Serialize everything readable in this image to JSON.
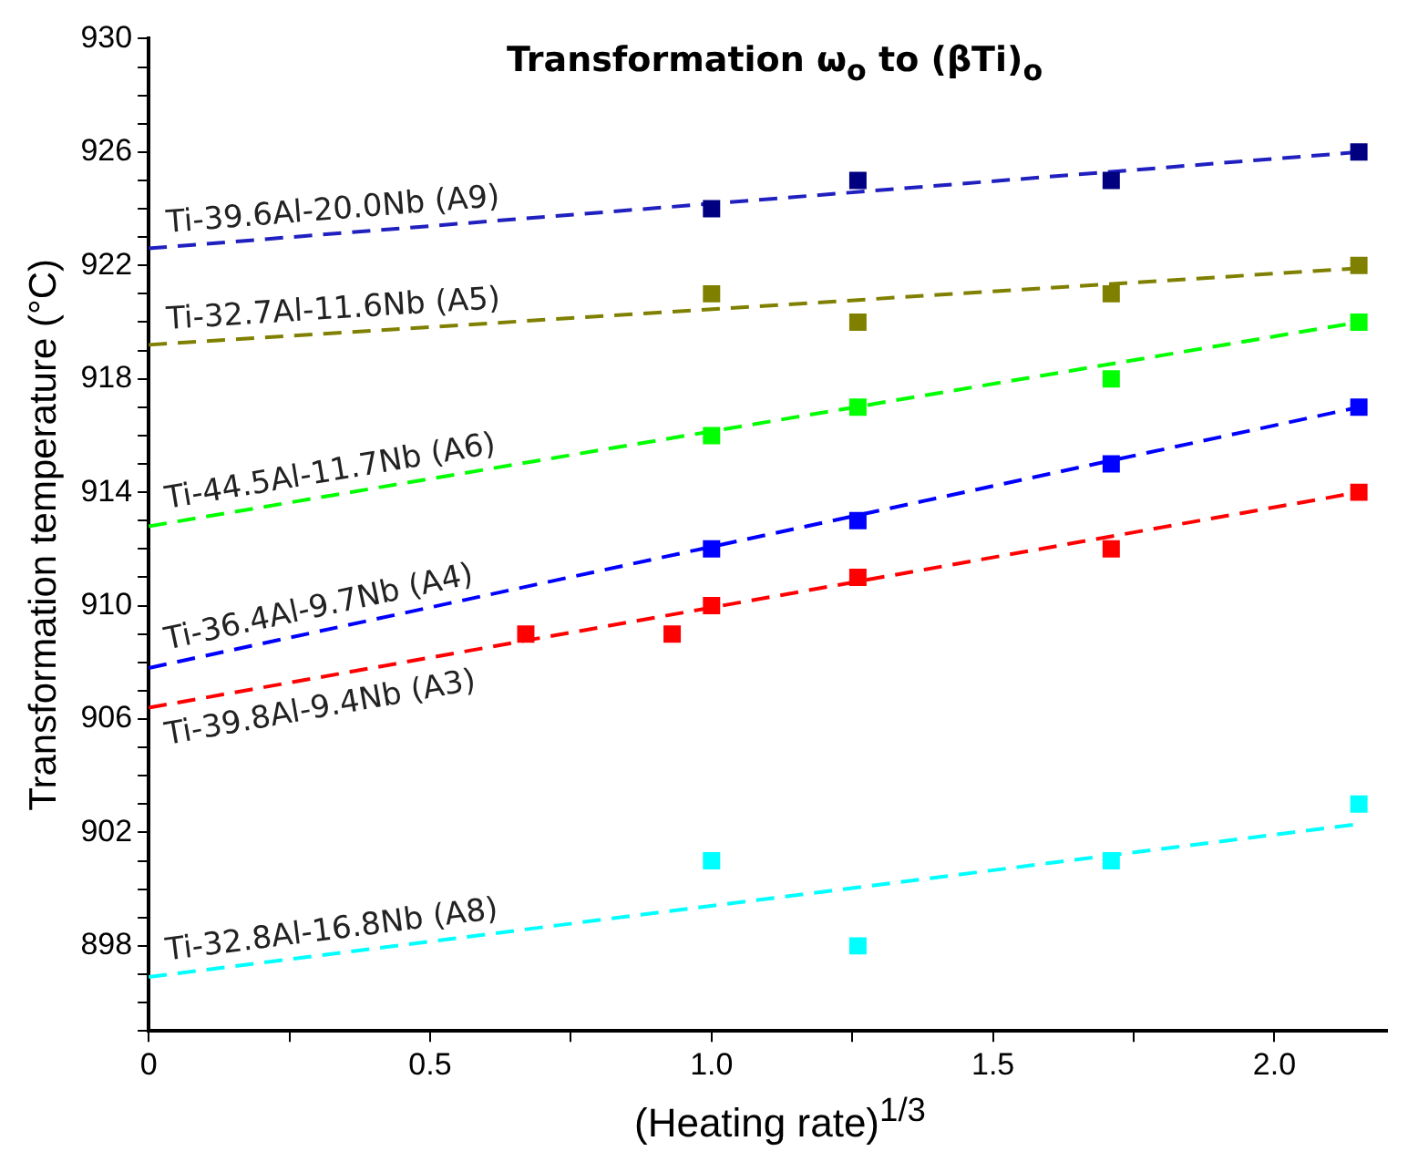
{
  "chart_data": {
    "type": "scatter",
    "title": "Transformation ω$_{o}$ to (βTi)$_{o}$",
    "xlabel": "(Heating rate)$^{1/3}$",
    "ylabel": "Transformation temperature (°C)",
    "series": [
      {
        "color": "#000080",
        "x": [
          1.0,
          1.26,
          1.71,
          2.15
        ],
        "values": [
          924,
          925,
          925,
          926
        ]
      },
      {
        "type": "line",
        "marker": "none",
        "name": "Ti-39.6Al-20.0Nb (A9)",
        "color": "#2020c0",
        "x": [
          0,
          2.15
        ],
        "values": [
          922.6,
          926.0
        ]
      },
      {
        "color": "#808000",
        "x": [
          1.0,
          1.26,
          1.71,
          2.15
        ],
        "values": [
          921,
          920,
          921,
          922
        ]
      },
      {
        "type": "line",
        "marker": "none",
        "name": "Ti-32.7Al-11.6Nb (A5)",
        "color": "#808000",
        "x": [
          0,
          2.15
        ],
        "values": [
          919.2,
          921.9
        ]
      },
      {
        "color": "#00ff00",
        "x": [
          1.0,
          1.26,
          1.71,
          2.15
        ],
        "values": [
          916,
          917,
          918,
          920
        ]
      },
      {
        "type": "line",
        "marker": "none",
        "name": "Ti-44.5Al-11.7Nb (A6)",
        "color": "#00ff00",
        "x": [
          0,
          2.15
        ],
        "values": [
          912.8,
          920.0
        ]
      },
      {
        "color": "#0000ff",
        "x": [
          1.0,
          1.26,
          1.71,
          2.15
        ],
        "values": [
          912,
          913,
          915,
          917
        ]
      },
      {
        "type": "line",
        "marker": "none",
        "name": "Ti-36.4Al-9.7Nb (A4)",
        "color": "#0000ff",
        "x": [
          0,
          2.15
        ],
        "values": [
          907.8,
          917.0
        ]
      },
      {
        "color": "#ff0000",
        "x": [
          0.67,
          0.93,
          1.0,
          1.26,
          1.71,
          2.15
        ],
        "values": [
          909,
          909,
          910,
          911,
          912,
          914
        ]
      },
      {
        "type": "line",
        "marker": "none",
        "name": "Ti-39.8Al-9.4Nb (A3)",
        "color": "#ff0000",
        "x": [
          0,
          2.15
        ],
        "values": [
          906.4,
          914.0
        ]
      },
      {
        "color": "#00ffff",
        "x": [
          1.0,
          1.26,
          1.71,
          2.15
        ],
        "values": [
          901,
          898,
          901,
          903
        ]
      },
      {
        "type": "line",
        "marker": "none",
        "name": "Ti-32.8Al-16.8Nb (A8)",
        "color": "#00ffff",
        "x": [
          0,
          2.15
        ],
        "values": [
          896.9,
          902.3
        ]
      }
    ],
    "xlim": [
      0,
      2.2
    ],
    "xticks": [
      0,
      {
        "value": 0.25,
        "label": null
      },
      0.5,
      {
        "value": 0.75,
        "label": null
      },
      {
        "value": 1,
        "label": "1.0"
      },
      {
        "value": 1.25,
        "label": null
      },
      1.5,
      {
        "value": 1.75,
        "label": null
      },
      {
        "value": 2,
        "label": "2.0"
      }
    ],
    "ylim": [
      895,
      930
    ],
    "yticks": [
      {
        "value": 895,
        "label": null
      },
      {
        "value": 896,
        "label": null
      },
      {
        "value": 897,
        "label": null
      },
      898,
      {
        "value": 899,
        "label": null
      },
      {
        "value": 900,
        "label": null
      },
      {
        "value": 901,
        "label": null
      },
      902,
      {
        "value": 903,
        "label": null
      },
      {
        "value": 904,
        "label": null
      },
      {
        "value": 905,
        "label": null
      },
      906,
      {
        "value": 907,
        "label": null
      },
      {
        "value": 908,
        "label": null
      },
      {
        "value": 909,
        "label": null
      },
      910,
      {
        "value": 911,
        "label": null
      },
      {
        "value": 912,
        "label": null
      },
      {
        "value": 913,
        "label": null
      },
      914,
      {
        "value": 915,
        "label": null
      },
      {
        "value": 916,
        "label": null
      },
      {
        "value": 917,
        "label": null
      },
      918,
      {
        "value": 919,
        "label": null
      },
      {
        "value": 920,
        "label": null
      },
      {
        "value": 921,
        "label": null
      },
      922,
      {
        "value": 923,
        "label": null
      },
      {
        "value": 924,
        "label": null
      },
      {
        "value": 925,
        "label": null
      },
      926,
      {
        "value": 927,
        "label": null
      },
      {
        "value": 928,
        "label": null
      },
      {
        "value": 929,
        "label": null
      },
      930
    ],
    "grid": false,
    "legend": false,
    "marker": "square",
    "line_style": "dashed"
  }
}
